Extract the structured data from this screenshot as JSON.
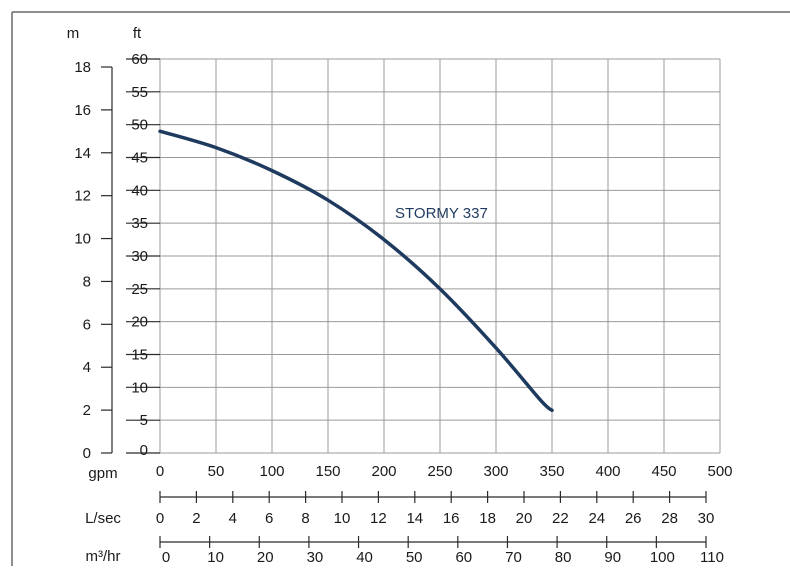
{
  "chart_data": {
    "type": "line",
    "grid": true,
    "x_unit_label": "gpm",
    "x_ticks": [
      0,
      50,
      100,
      150,
      200,
      250,
      300,
      350,
      400,
      450,
      500
    ],
    "xlim": [
      0,
      500
    ],
    "y_unit_label": "ft",
    "y_ticks": [
      0,
      5,
      10,
      15,
      20,
      25,
      30,
      35,
      40,
      45,
      50,
      55,
      60
    ],
    "ylim": [
      0,
      60
    ],
    "secondary_y_axis": {
      "unit_label": "m",
      "ticks": [
        0,
        2,
        4,
        6,
        8,
        10,
        12,
        14,
        16,
        18
      ]
    },
    "secondary_x_axes": [
      {
        "unit_label": "L/sec",
        "ticks": [
          "0",
          "2",
          "4",
          "6",
          "8",
          "10",
          "12",
          "14",
          "16",
          "18",
          "20",
          "22",
          "24",
          "26",
          "28",
          "30"
        ]
      },
      {
        "unit_label": "m³/hr",
        "ticks": [
          "0",
          "10",
          "20",
          "30",
          "40",
          "50",
          "60",
          "70",
          "80",
          "90",
          "100",
          "110"
        ]
      }
    ],
    "series": [
      {
        "name": "STORMY 337",
        "color": "#1f3a5f",
        "x": [
          0,
          50,
          100,
          150,
          200,
          250,
          300,
          340,
          350
        ],
        "y": [
          49,
          46.5,
          43,
          38.5,
          32.5,
          25,
          16,
          8,
          6.5
        ]
      }
    ]
  }
}
